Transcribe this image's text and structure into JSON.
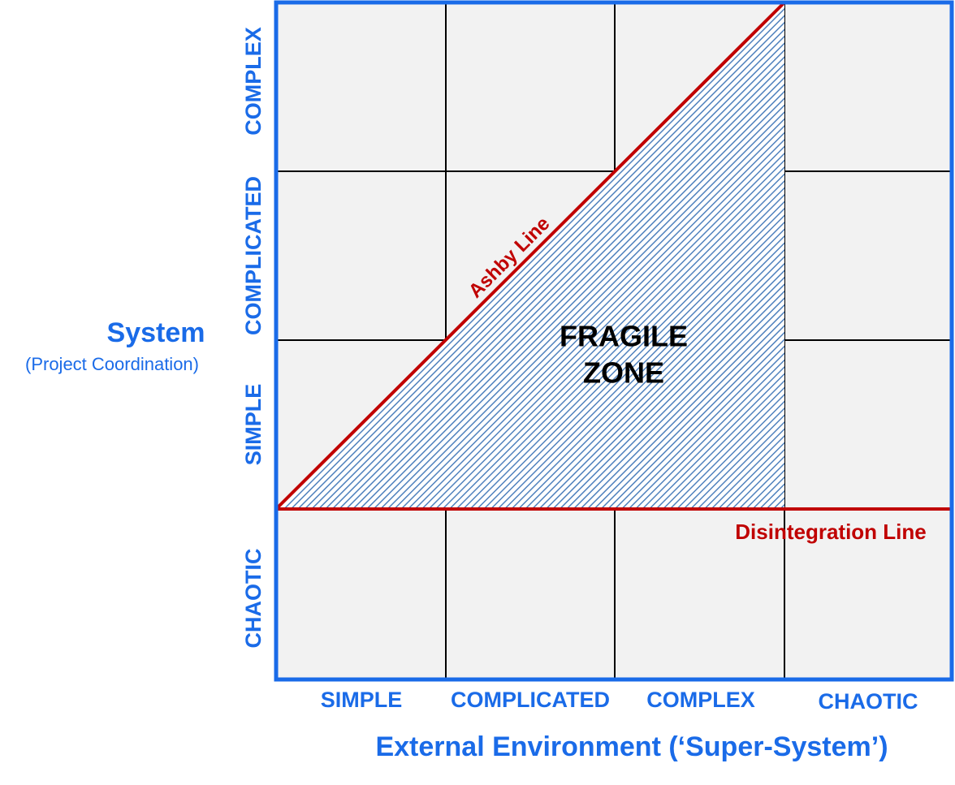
{
  "diagram": {
    "y_axis": {
      "title": "System",
      "subtitle": "(Project Coordination)",
      "levels": [
        "COMPLEX",
        "COMPLICATED",
        "SIMPLE",
        "CHAOTIC"
      ]
    },
    "x_axis": {
      "title": "External Environment (‘Super-System’)",
      "levels": [
        "SIMPLE",
        "COMPLICATED",
        "COMPLEX",
        "CHAOTIC"
      ]
    },
    "zone": {
      "lines": [
        "FRAGILE",
        "ZONE"
      ]
    },
    "ashby_line": "Ashby Line",
    "disintegration_line": "Disintegration Line"
  }
}
